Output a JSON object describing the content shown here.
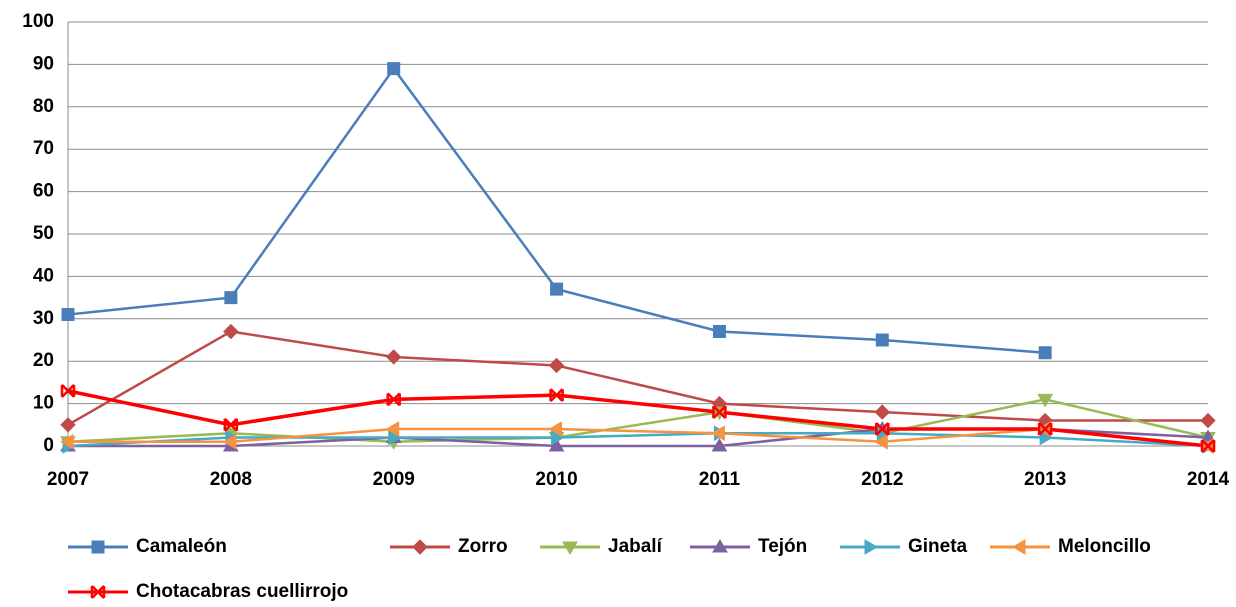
{
  "chart_data": {
    "type": "line",
    "categories": [
      "2007",
      "2008",
      "2009",
      "2010",
      "2011",
      "2012",
      "2013",
      "2014"
    ],
    "ylim": [
      0,
      100
    ],
    "yticks": [
      0,
      10,
      20,
      30,
      40,
      50,
      60,
      70,
      80,
      90,
      100
    ],
    "grid": true,
    "legend": "bottom",
    "series": [
      {
        "name": "Camaleón",
        "color": "#4a7ebb",
        "marker": "square",
        "values": [
          31,
          35,
          89,
          37,
          27,
          25,
          22,
          null
        ]
      },
      {
        "name": "Zorro",
        "color": "#be4b48",
        "marker": "diamond",
        "values": [
          5,
          27,
          21,
          19,
          10,
          8,
          6,
          6
        ]
      },
      {
        "name": "Jabalí",
        "color": "#98b954",
        "marker": "triangle-down",
        "values": [
          1,
          3,
          1,
          2,
          8,
          3,
          11,
          2
        ]
      },
      {
        "name": "Tejón",
        "color": "#7d60a0",
        "marker": "triangle-up",
        "values": [
          0,
          0,
          2,
          0,
          0,
          4,
          4,
          2
        ]
      },
      {
        "name": "Gineta",
        "color": "#46aac5",
        "marker": "triangle-right",
        "values": [
          0,
          2,
          2,
          2,
          3,
          3,
          2,
          0
        ]
      },
      {
        "name": "Meloncillo",
        "color": "#f69240",
        "marker": "triangle-left",
        "values": [
          1,
          1,
          4,
          4,
          3,
          1,
          4,
          0
        ]
      },
      {
        "name": "Chotacabras cuellirrojo",
        "color": "#ff0000",
        "marker": "star",
        "values": [
          13,
          5,
          11,
          12,
          8,
          4,
          4,
          0
        ]
      }
    ]
  }
}
